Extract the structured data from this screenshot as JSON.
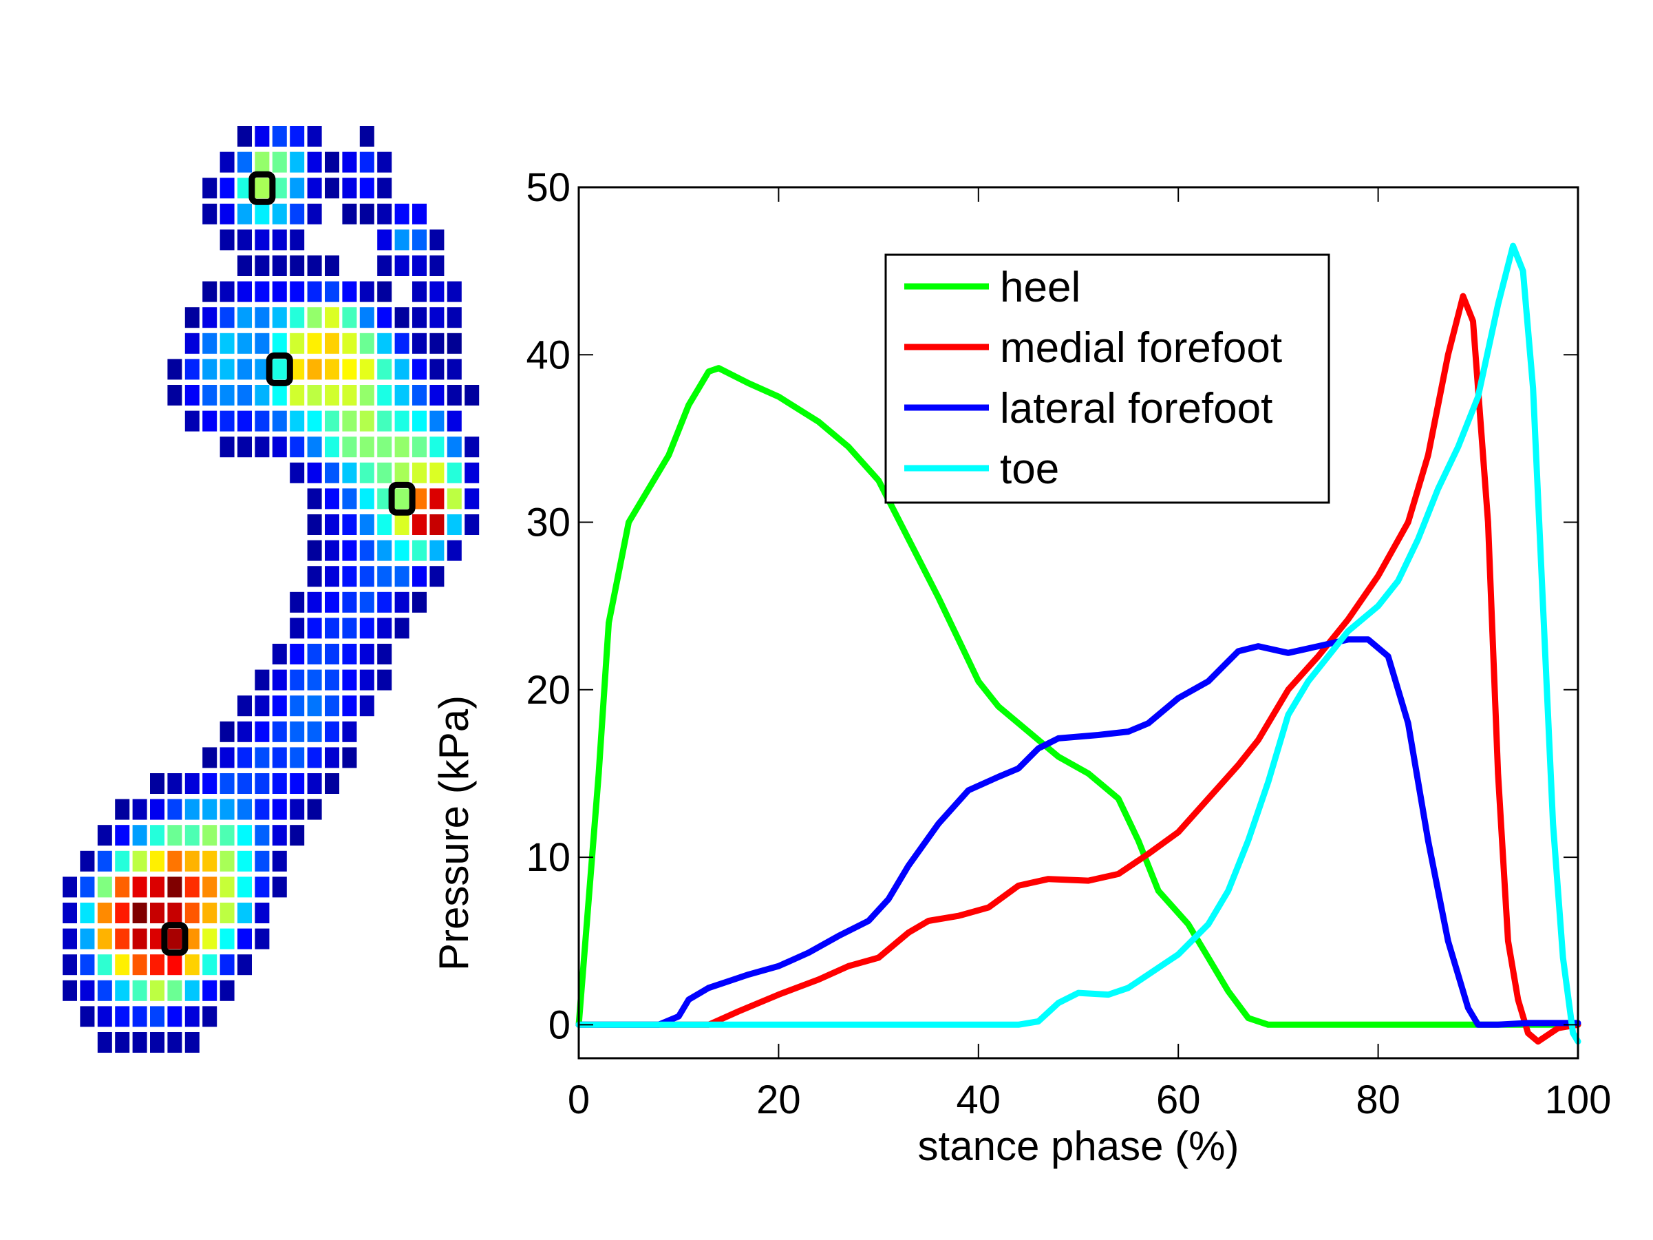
{
  "heatmap": {
    "colormap": "jet",
    "value_scale": [
      0,
      100
    ],
    "rows": [
      {
        "row": 0,
        "start": 10,
        "values": [
          3,
          11,
          19,
          15,
          6,
          null,
          null,
          3
        ]
      },
      {
        "row": 1,
        "start": 9,
        "values": [
          6,
          23,
          52,
          48,
          31,
          10,
          3,
          11,
          16,
          5
        ]
      },
      {
        "row": 2,
        "start": 8,
        "values": [
          4,
          13,
          40,
          54,
          45,
          28,
          9,
          3,
          10,
          13,
          4
        ]
      },
      {
        "row": 3,
        "start": 8,
        "values": [
          4,
          11,
          29,
          36,
          31,
          19,
          6,
          null,
          3,
          3,
          5,
          13,
          12
        ]
      },
      {
        "row": 4,
        "start": 9,
        "values": [
          4,
          5,
          9,
          8,
          5,
          null,
          null,
          null,
          null,
          10,
          27,
          22,
          4
        ]
      },
      {
        "row": 5,
        "start": 10,
        "values": [
          3,
          4,
          4,
          3,
          3,
          3,
          null,
          null,
          4,
          8,
          8,
          4
        ]
      },
      {
        "row": 6,
        "start": 8,
        "values": [
          3,
          6,
          11,
          13,
          12,
          13,
          16,
          19,
          13,
          6,
          3,
          null,
          6,
          9,
          6
        ]
      },
      {
        "row": 7,
        "start": 7,
        "values": [
          3,
          10,
          19,
          28,
          25,
          31,
          41,
          52,
          59,
          44,
          25,
          13,
          3,
          5,
          8,
          5
        ]
      },
      {
        "row": 8,
        "start": 7,
        "values": [
          9,
          24,
          32,
          28,
          25,
          38,
          58,
          64,
          67,
          59,
          48,
          32,
          16,
          5,
          3,
          2
        ]
      },
      {
        "row": 9,
        "start": 6,
        "values": [
          3,
          16,
          28,
          31,
          26,
          28,
          40,
          65,
          70,
          67,
          63,
          60,
          43,
          31,
          13,
          4,
          5
        ]
      },
      {
        "row": 10,
        "start": 6,
        "values": [
          3,
          12,
          22,
          26,
          24,
          30,
          38,
          58,
          56,
          58,
          58,
          52,
          40,
          32,
          21,
          10,
          4,
          3
        ]
      },
      {
        "row": 11,
        "start": 7,
        "values": [
          5,
          12,
          16,
          14,
          18,
          23,
          33,
          37,
          44,
          52,
          55,
          44,
          40,
          37,
          25,
          10
        ]
      },
      {
        "row": 12,
        "start": 9,
        "values": [
          4,
          4,
          5,
          9,
          17,
          25,
          40,
          49,
          51,
          50,
          52,
          48,
          40,
          25,
          5
        ]
      },
      {
        "row": 13,
        "start": 13,
        "values": [
          5,
          11,
          21,
          32,
          44,
          48,
          54,
          58,
          59,
          41,
          9
        ]
      },
      {
        "row": 14,
        "start": 14,
        "values": [
          4,
          13,
          22,
          36,
          44,
          52,
          76,
          91,
          56,
          9
        ]
      },
      {
        "row": 15,
        "start": 14,
        "values": [
          3,
          9,
          14,
          25,
          39,
          59,
          91,
          93,
          32,
          5
        ]
      },
      {
        "row": 16,
        "start": 14,
        "values": [
          3,
          8,
          13,
          20,
          28,
          37,
          42,
          30,
          6
        ]
      },
      {
        "row": 17,
        "start": 14,
        "values": [
          4,
          9,
          14,
          19,
          22,
          22,
          12,
          4
        ]
      },
      {
        "row": 18,
        "start": 13,
        "values": [
          4,
          10,
          13,
          17,
          20,
          15,
          8,
          3
        ]
      },
      {
        "row": 19,
        "start": 13,
        "values": [
          5,
          14,
          17,
          18,
          14,
          8,
          4
        ]
      },
      {
        "row": 20,
        "start": 12,
        "values": [
          5,
          13,
          19,
          18,
          14,
          9,
          4
        ]
      },
      {
        "row": 21,
        "start": 11,
        "values": [
          4,
          10,
          19,
          21,
          19,
          13,
          8,
          4
        ]
      },
      {
        "row": 22,
        "start": 10,
        "values": [
          4,
          7,
          13,
          22,
          24,
          20,
          13,
          6
        ]
      },
      {
        "row": 23,
        "start": 9,
        "values": [
          3,
          7,
          13,
          18,
          22,
          22,
          16,
          7
        ]
      },
      {
        "row": 24,
        "start": 8,
        "values": [
          3,
          9,
          16,
          20,
          17,
          21,
          15,
          8,
          3
        ]
      },
      {
        "row": 25,
        "start": 5,
        "values": [
          3,
          5,
          9,
          13,
          20,
          19,
          18,
          14,
          13,
          7,
          3
        ]
      },
      {
        "row": 26,
        "start": 3,
        "values": [
          3,
          6,
          11,
          19,
          28,
          29,
          28,
          24,
          16,
          12,
          6,
          3
        ]
      },
      {
        "row": 27,
        "start": 2,
        "values": [
          4,
          13,
          28,
          41,
          48,
          45,
          52,
          45,
          37,
          22,
          9,
          3
        ]
      },
      {
        "row": 28,
        "start": 1,
        "values": [
          4,
          20,
          41,
          56,
          64,
          76,
          70,
          68,
          54,
          38,
          20,
          5
        ]
      },
      {
        "row": 29,
        "start": 0,
        "values": [
          5,
          20,
          50,
          78,
          90,
          91,
          100,
          83,
          74,
          57,
          38,
          15,
          4
        ]
      },
      {
        "row": 30,
        "start": 0,
        "values": [
          7,
          35,
          74,
          85,
          100,
          93,
          93,
          79,
          70,
          56,
          32,
          8
        ]
      },
      {
        "row": 31,
        "start": 0,
        "values": [
          7,
          29,
          70,
          82,
          93,
          91,
          96,
          73,
          60,
          38,
          13,
          5
        ]
      },
      {
        "row": 32,
        "start": 0,
        "values": [
          5,
          19,
          42,
          64,
          79,
          85,
          87,
          67,
          40,
          16,
          4
        ]
      },
      {
        "row": 33,
        "start": 0,
        "values": [
          4,
          9,
          19,
          33,
          44,
          56,
          48,
          32,
          13,
          4
        ]
      },
      {
        "row": 34,
        "start": 1,
        "values": [
          4,
          9,
          14,
          16,
          19,
          13,
          9,
          4
        ]
      },
      {
        "row": 35,
        "start": 2,
        "values": [
          4,
          4,
          4,
          4,
          4,
          4
        ]
      }
    ],
    "markers": [
      {
        "region": "toe",
        "row": 2,
        "col": 11
      },
      {
        "region": "medial forefoot",
        "row": 9,
        "col": 12
      },
      {
        "region": "lateral forefoot",
        "row": 14,
        "col": 19
      },
      {
        "region": "heel",
        "row": 31,
        "col": 6
      }
    ]
  },
  "chart_data": {
    "type": "line",
    "title": "",
    "xlabel": "stance phase (%)",
    "ylabel": "Pressure (kPa)",
    "xlim": [
      0,
      100
    ],
    "ylim": [
      -2,
      50
    ],
    "xticks": [
      0,
      20,
      40,
      60,
      80,
      100
    ],
    "yticks": [
      0,
      10,
      20,
      30,
      40,
      50
    ],
    "grid": false,
    "legend_position": "top-center",
    "series": [
      {
        "name": "heel",
        "color": "#00ff00",
        "x": [
          0,
          2,
          3,
          5,
          7,
          9,
          11,
          13,
          14,
          17,
          20,
          24,
          27,
          30,
          33,
          36,
          38,
          40,
          42,
          45,
          48,
          51,
          54,
          56,
          58,
          61,
          63,
          65,
          67,
          69,
          100
        ],
        "y": [
          0,
          15,
          24,
          30,
          32,
          34,
          37,
          39,
          39.2,
          38.3,
          37.5,
          36,
          34.5,
          32.5,
          29,
          25.5,
          23,
          20.5,
          19,
          17.5,
          16,
          15,
          13.5,
          11,
          8,
          6,
          4,
          2,
          0.4,
          0,
          0
        ]
      },
      {
        "name": "medial forefoot",
        "color": "#ff0000",
        "x": [
          0,
          13,
          16,
          20,
          24,
          27,
          30,
          33,
          35,
          38,
          41,
          44,
          47,
          51,
          54,
          57,
          60,
          63,
          66,
          68,
          71,
          74,
          77,
          80,
          83,
          85,
          87,
          88.5,
          89.5,
          91,
          92,
          93,
          94,
          95,
          96,
          98,
          100
        ],
        "y": [
          0,
          0,
          0.8,
          1.8,
          2.7,
          3.5,
          4,
          5.5,
          6.2,
          6.5,
          7,
          8.3,
          8.7,
          8.6,
          9,
          10.2,
          11.5,
          13.5,
          15.5,
          17,
          20,
          22,
          24.2,
          26.8,
          30,
          34,
          40,
          43.5,
          42,
          30,
          15,
          5,
          1.5,
          -0.5,
          -1,
          -0.2,
          0
        ]
      },
      {
        "name": "lateral forefoot",
        "color": "#0000ff",
        "x": [
          0,
          8,
          10,
          11,
          13,
          15,
          17,
          20,
          23,
          26,
          29,
          31,
          33,
          36,
          39,
          42,
          44,
          46,
          48,
          52,
          55,
          57,
          60,
          63,
          66,
          68,
          71,
          74,
          77,
          79,
          81,
          83,
          85,
          87,
          89,
          90,
          92,
          95,
          100
        ],
        "y": [
          0,
          0,
          0.5,
          1.5,
          2.2,
          2.6,
          3,
          3.5,
          4.3,
          5.3,
          6.2,
          7.5,
          9.5,
          12,
          14,
          14.8,
          15.3,
          16.5,
          17.1,
          17.3,
          17.5,
          18,
          19.5,
          20.5,
          22.3,
          22.6,
          22.2,
          22.6,
          23,
          23,
          22,
          18,
          11,
          5,
          1,
          0,
          0,
          0.1,
          0.1
        ]
      },
      {
        "name": "toe",
        "color": "#00ffff",
        "x": [
          0,
          44,
          46,
          48,
          50,
          53,
          55,
          57,
          60,
          63,
          65,
          67,
          69,
          71,
          73,
          75,
          77,
          80,
          82,
          84,
          86,
          88,
          90,
          92,
          93.5,
          94.5,
          95.5,
          96.5,
          97.5,
          98.5,
          99.5,
          100
        ],
        "y": [
          0,
          0,
          0.2,
          1.3,
          1.9,
          1.8,
          2.2,
          3,
          4.2,
          6,
          8,
          11,
          14.5,
          18.5,
          20.5,
          22,
          23.5,
          25,
          26.5,
          29,
          32,
          34.5,
          37.5,
          43,
          46.5,
          45,
          38,
          25,
          12,
          4,
          -0.5,
          -1
        ]
      }
    ]
  }
}
